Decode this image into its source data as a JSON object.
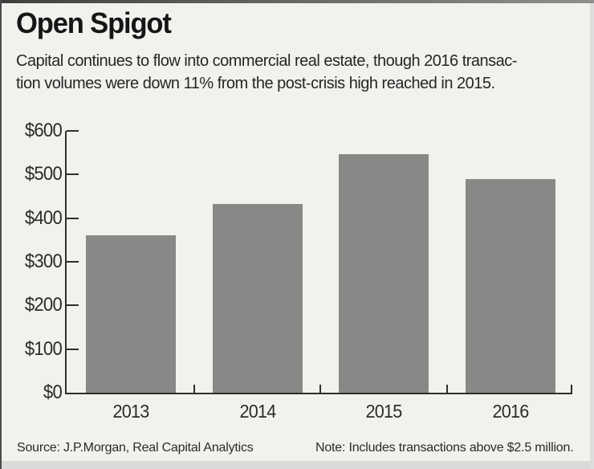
{
  "header": {
    "title": "Open Spigot",
    "subtitle_line1": "Capital continues to flow into commercial real estate, though 2016 transac-",
    "subtitle_line2": "tion volumes were down 11% from the post-crisis high reached in 2015."
  },
  "chart_data": {
    "type": "bar",
    "categories": [
      "2013",
      "2014",
      "2015",
      "2016"
    ],
    "values": [
      360,
      432,
      547,
      489
    ],
    "title": "Open Spigot",
    "xlabel": "",
    "ylabel": "",
    "ylim": [
      0,
      600
    ],
    "ytick_step": 100,
    "ytick_labels": [
      "$0",
      "$100",
      "$200",
      "$300",
      "$400",
      "$500",
      "$600"
    ],
    "grid": false,
    "legend": false,
    "bar_color": "#898887",
    "axis_color": "#2e2e2e",
    "background_color": "#f2f1ee"
  },
  "footer": {
    "source": "Source: J.P.Morgan, Real Capital Analytics",
    "note": "Note: Includes transactions above $2.5 million."
  }
}
